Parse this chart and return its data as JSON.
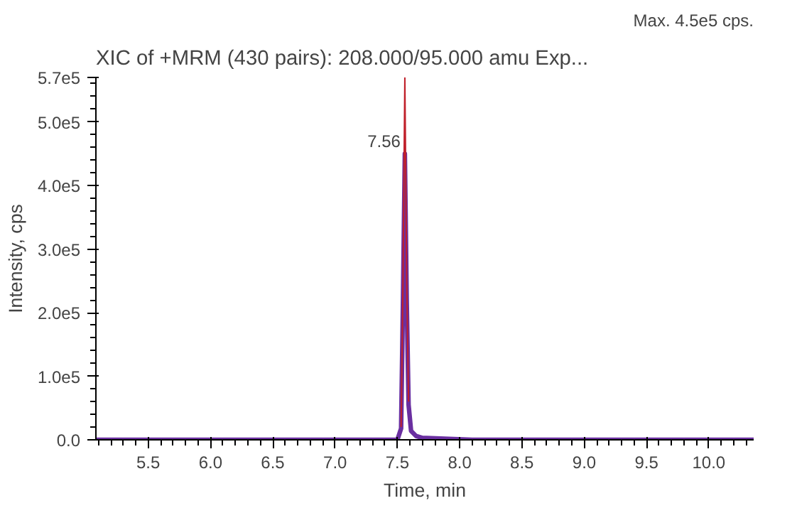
{
  "chart_data": {
    "type": "line",
    "title": "XIC of +MRM (430 pairs): 208.000/95.000 amu Exp...",
    "xlabel": "Time, min",
    "ylabel": "Intensity, cps",
    "annotations": [
      "Max. 4.5e5 cps.",
      {
        "text": "7.56",
        "x": 7.56,
        "y": 460000
      }
    ],
    "xlim": [
      5.08,
      10.36
    ],
    "xticks": [
      5.5,
      {
        "value": 6,
        "label": "6.0"
      },
      6.5,
      {
        "value": 7,
        "label": "7.0"
      },
      7.5,
      {
        "value": 8,
        "label": "8.0"
      },
      8.5,
      {
        "value": 9,
        "label": "9.0"
      },
      9.5,
      {
        "value": 10,
        "label": "10.0"
      }
    ],
    "ylim": [
      0,
      570000
    ],
    "yticks": [
      {
        "value": 0,
        "label": "0.0"
      },
      {
        "value": 100000,
        "label": "1.0e5"
      },
      {
        "value": 200000,
        "label": "2.0e5"
      },
      {
        "value": 300000,
        "label": "3.0e5"
      },
      {
        "value": 400000,
        "label": "4.0e5"
      },
      {
        "value": 500000,
        "label": "5.0e5"
      },
      {
        "value": 570000,
        "label": "5.7e5"
      }
    ],
    "grid": false,
    "marker": "none",
    "line_style": "solid",
    "series": [
      {
        "color": "#6a2fa0",
        "x": [
          5.08,
          7.1,
          7.5,
          7.53,
          7.545,
          7.56,
          7.575,
          7.59,
          7.61,
          7.65,
          7.7,
          8.1,
          10.36
        ],
        "values": [
          0,
          0,
          0,
          18000,
          220000,
          450000,
          220000,
          55000,
          14000,
          6000,
          3000,
          0,
          0
        ]
      },
      {
        "color": "#c0202a",
        "x": [
          7.53,
          7.545,
          7.56,
          7.575,
          7.59
        ],
        "values": [
          20000,
          250000,
          570000,
          250000,
          60000
        ]
      }
    ]
  }
}
